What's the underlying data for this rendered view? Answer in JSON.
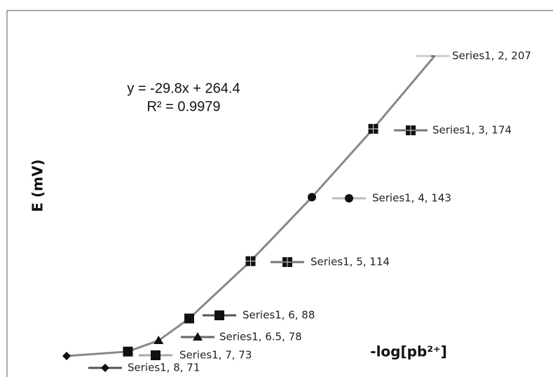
{
  "chart_data": {
    "type": "line",
    "x_label": "-log[pb²⁺]",
    "y_label": "E (mV)",
    "annotations": [
      "y = -29.8x + 264.4",
      "R² = 0.9979"
    ],
    "x_reversed": true,
    "x": [
      8,
      7,
      6.5,
      6,
      5,
      4,
      3,
      2
    ],
    "series": [
      {
        "name": "Series1",
        "color": "#888888",
        "values": [
          71,
          73,
          78,
          88,
          114,
          143,
          174,
          207
        ],
        "value_labels": [
          "Series1, 8, 71",
          "Series1, 7, 73",
          "Series1, 6.5, 78",
          "Series1, 6, 88",
          "Series1, 5, 114",
          "Series1, 4, 143",
          "Series1, 3, 174",
          "Series1, 2, 207"
        ]
      }
    ]
  }
}
